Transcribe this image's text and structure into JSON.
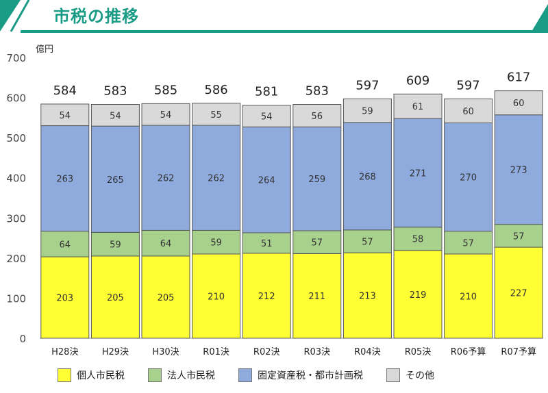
{
  "header": {
    "title": "市税の推移"
  },
  "colors": {
    "header_accent": "#1a9b86",
    "individual": "#ffff33",
    "corporate": "#a9d18e",
    "property": "#8faadc",
    "other": "#d9d9d9"
  },
  "chart_data": {
    "type": "bar",
    "stacked": true,
    "unit_label": "億円",
    "ylim": [
      0,
      700
    ],
    "yticks": [
      "0",
      "100",
      "200",
      "300",
      "400",
      "500",
      "600",
      "700"
    ],
    "categories": [
      "H28決",
      "H29決",
      "H30決",
      "R01決",
      "R02決",
      "R03決",
      "R04決",
      "R05決",
      "R06予算",
      "R07予算"
    ],
    "totals": [
      584,
      583,
      585,
      586,
      581,
      583,
      597,
      609,
      597,
      617
    ],
    "series": [
      {
        "name": "個人市民税",
        "color": "#ffff33",
        "values": [
          203,
          205,
          205,
          210,
          212,
          211,
          213,
          219,
          210,
          227
        ]
      },
      {
        "name": "法人市民税",
        "color": "#a9d18e",
        "values": [
          64,
          59,
          64,
          59,
          51,
          57,
          57,
          58,
          57,
          57
        ]
      },
      {
        "name": "固定資産税・都市計画税",
        "color": "#8faadc",
        "values": [
          263,
          265,
          262,
          262,
          264,
          259,
          268,
          271,
          270,
          273
        ]
      },
      {
        "name": "その他",
        "color": "#d9d9d9",
        "values": [
          54,
          54,
          54,
          55,
          54,
          56,
          59,
          61,
          60,
          60
        ]
      }
    ],
    "legend_position": "bottom",
    "grid": false
  }
}
